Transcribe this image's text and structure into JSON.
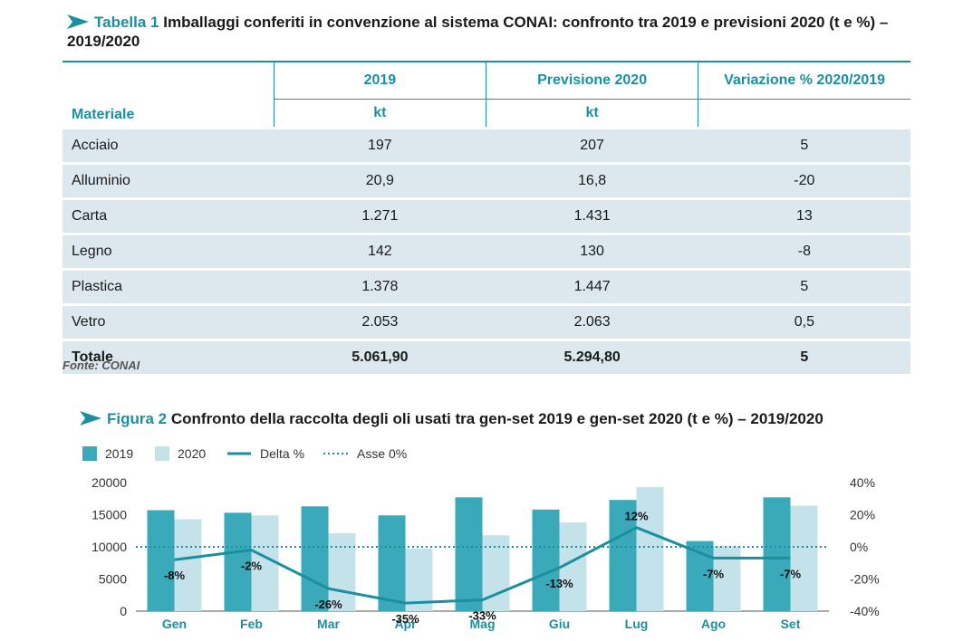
{
  "table": {
    "label": "Tabella 1",
    "title": "Imballaggi conferiti in convenzione al sistema CONAI: confronto tra 2019 e previsioni 2020 (t e %) – 2019/2020",
    "headers": {
      "material": "Materiale",
      "col2019": "2019",
      "col2020": "Previsione 2020",
      "colvar": "Variazione % 2020/2019",
      "unit2019": "kt",
      "unit2020": "kt"
    },
    "rows": [
      {
        "material": "Acciaio",
        "v2019": "197",
        "v2020": "207",
        "var": "5"
      },
      {
        "material": "Alluminio",
        "v2019": "20,9",
        "v2020": "16,8",
        "var": "-20"
      },
      {
        "material": "Carta",
        "v2019": "1.271",
        "v2020": "1.431",
        "var": "13"
      },
      {
        "material": "Legno",
        "v2019": "142",
        "v2020": "130",
        "var": "-8"
      },
      {
        "material": "Plastica",
        "v2019": "1.378",
        "v2020": "1.447",
        "var": "5"
      },
      {
        "material": "Vetro",
        "v2019": "2.053",
        "v2020": "2.063",
        "var": "0,5"
      }
    ],
    "total": {
      "material": "Totale",
      "v2019": "5.061,90",
      "v2020": "5.294,80",
      "var": "5"
    },
    "source": "Fonte: CONAI"
  },
  "figure": {
    "label": "Figura 2",
    "title": "Confronto della raccolta degli oli usati tra gen-set 2019 e gen-set 2020 (t e %) – 2019/2020"
  },
  "chart_data": {
    "type": "bar",
    "title": "",
    "xlabel": "",
    "ylabel": "",
    "categories": [
      "Gen",
      "Feb",
      "Mar",
      "Apr",
      "Mag",
      "Giu",
      "Lug",
      "Ago",
      "Set"
    ],
    "series": [
      {
        "name": "2019",
        "values": [
          15700,
          15300,
          16300,
          14900,
          17700,
          15800,
          17300,
          10900,
          17700
        ],
        "color": "#3aa9ba"
      },
      {
        "name": "2020",
        "values": [
          14300,
          14900,
          12100,
          9700,
          11800,
          13800,
          19300,
          10100,
          16400
        ],
        "color": "#c3e2e9"
      }
    ],
    "line": {
      "name": "Delta %",
      "values": [
        -8,
        -2,
        -26,
        -35,
        -33,
        -13,
        12,
        -7,
        -7
      ],
      "labels": [
        "-8%",
        "-2%",
        "-26%",
        "-35%",
        "-33%",
        "-13%",
        "12%",
        "-7%",
        "-7%"
      ],
      "color": "#1a8fa0"
    },
    "reference": {
      "name": "Asse 0%",
      "value": 0
    },
    "ylim": [
      0,
      20000
    ],
    "yticks": [
      "0",
      "5000",
      "10000",
      "15000",
      "20000"
    ],
    "y2lim": [
      -40,
      40
    ],
    "y2ticks": [
      "-40%",
      "-20%",
      "0%",
      "20%",
      "40%"
    ],
    "legend_position": "top-left",
    "grid": false
  }
}
